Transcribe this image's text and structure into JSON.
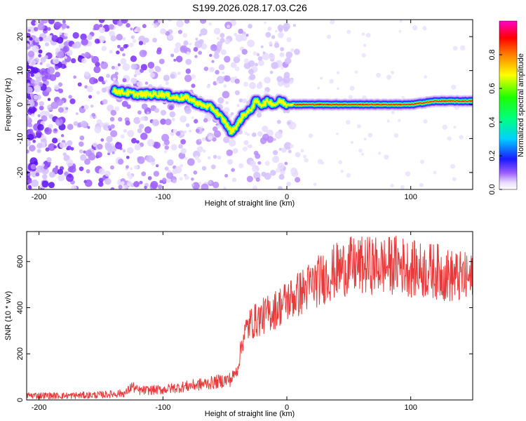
{
  "title": "S199.2026.028.17.03.C26",
  "chart_data": [
    {
      "type": "heatmap",
      "title": "S199.2026.028.17.03.C26",
      "xlabel": "Height of straight line (km)",
      "ylabel": "Frequency (Hz)",
      "xlim": [
        -210,
        150
      ],
      "ylim": [
        -25,
        25
      ],
      "xticks": [
        -200,
        -100,
        0,
        100
      ],
      "yticks": [
        -20,
        -10,
        0,
        10,
        20
      ],
      "colorbar": {
        "label": "Normalized spectral amplitude",
        "range": [
          0.0,
          1.0
        ],
        "ticks": [
          "0.0",
          "0.2",
          "0.4",
          "0.6",
          "0.8"
        ]
      },
      "ridge": {
        "description": "frequency of the spectral peak vs height",
        "x": [
          -140,
          -130,
          -120,
          -110,
          -100,
          -90,
          -80,
          -70,
          -60,
          -50,
          -45,
          -40,
          -35,
          -30,
          -25,
          -20,
          -15,
          -10,
          -5,
          0,
          10,
          20,
          40,
          60,
          80,
          100,
          120,
          150
        ],
        "y": [
          4,
          3.5,
          3,
          3,
          3,
          2,
          2,
          0,
          -1,
          -5,
          -8,
          -6,
          -3,
          -2,
          1,
          0,
          1,
          0,
          1,
          0,
          0,
          0,
          0,
          0,
          0,
          0,
          1,
          1
        ]
      }
    },
    {
      "type": "line",
      "xlabel": "Height of straight line (km)",
      "ylabel": "SNR (10 * v/v)",
      "xlim": [
        -210,
        150
      ],
      "ylim": [
        0,
        730
      ],
      "xticks": [
        -200,
        -100,
        0,
        100
      ],
      "yticks": [
        0,
        200,
        400,
        600
      ],
      "series": [
        {
          "name": "SNR",
          "color": "#e83a3a",
          "x": [
            -210,
            -180,
            -150,
            -130,
            -125,
            -120,
            -100,
            -80,
            -60,
            -45,
            -40,
            -35,
            -30,
            -20,
            -10,
            0,
            10,
            20,
            30,
            40,
            50,
            60,
            70,
            80,
            90,
            100,
            110,
            120,
            130,
            140,
            150
          ],
          "y": [
            20,
            18,
            22,
            30,
            60,
            40,
            45,
            60,
            75,
            90,
            130,
            280,
            330,
            360,
            390,
            430,
            460,
            500,
            530,
            560,
            580,
            580,
            585,
            580,
            590,
            570,
            560,
            560,
            540,
            530,
            520
          ]
        }
      ]
    }
  ]
}
